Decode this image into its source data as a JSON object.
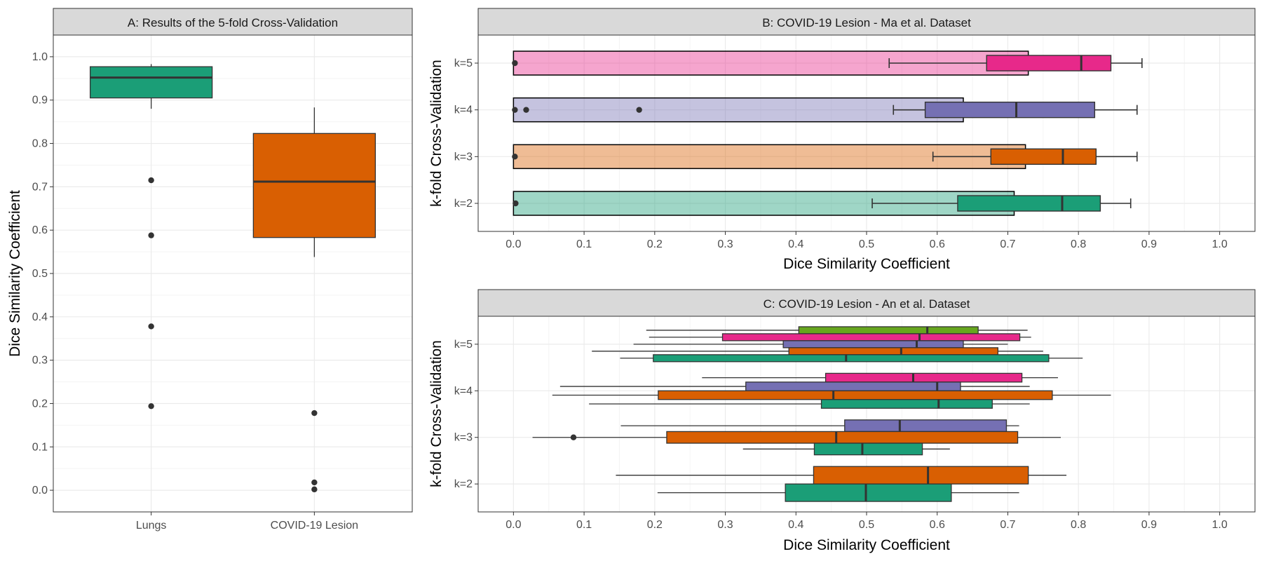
{
  "chart_data": [
    {
      "id": "A",
      "type": "boxplot",
      "title": "A: Results of the 5-fold Cross-Validation",
      "xlabel": "",
      "ylabel": "Dice Similarity Coefficient",
      "ylim": [
        -0.05,
        1.05
      ],
      "yticks": [
        0.0,
        0.1,
        0.2,
        0.3,
        0.4,
        0.5,
        0.6,
        0.7,
        0.8,
        0.9,
        1.0
      ],
      "ytick_labels": [
        "0.0",
        "0.1",
        "0.2",
        "0.3",
        "0.4",
        "0.5",
        "0.6",
        "0.7",
        "0.8",
        "0.9",
        "1.0"
      ],
      "grid": true,
      "categories": [
        "Lungs",
        "COVID-19 Lesion"
      ],
      "boxes": [
        {
          "category": "Lungs",
          "color": "#1b9e77",
          "lower_whisker": 0.88,
          "q1": 0.905,
          "median": 0.952,
          "q3": 0.977,
          "upper_whisker": 0.983,
          "outliers": [
            0.715,
            0.588,
            0.378,
            0.194
          ]
        },
        {
          "category": "COVID-19 Lesion",
          "color": "#d95f02",
          "lower_whisker": 0.538,
          "q1": 0.583,
          "median": 0.712,
          "q3": 0.823,
          "upper_whisker": 0.883,
          "outliers": [
            0.178,
            0.018,
            0.002
          ]
        }
      ]
    },
    {
      "id": "B",
      "type": "bar_with_boxplot",
      "title": "B: COVID-19 Lesion - Ma et al. Dataset",
      "xlabel": "Dice Similarity Coefficient",
      "ylabel": "k-fold Cross-Validation",
      "xlim": [
        -0.05,
        1.05
      ],
      "xticks": [
        0.0,
        0.1,
        0.2,
        0.3,
        0.4,
        0.5,
        0.6,
        0.7,
        0.8,
        0.9,
        1.0
      ],
      "xtick_labels": [
        "0.0",
        "0.1",
        "0.2",
        "0.3",
        "0.4",
        "0.5",
        "0.6",
        "0.7",
        "0.8",
        "0.9",
        "1.0"
      ],
      "grid": true,
      "categories": [
        "k=2",
        "k=3",
        "k=4",
        "k=5"
      ],
      "series": [
        {
          "category": "k=5",
          "color": "#e7298a",
          "bar_value": 0.729,
          "lower_whisker": 0.532,
          "q1": 0.67,
          "median": 0.804,
          "q3": 0.846,
          "upper_whisker": 0.89,
          "outliers": [
            0.002
          ]
        },
        {
          "category": "k=4",
          "color": "#7570b3",
          "bar_value": 0.637,
          "lower_whisker": 0.538,
          "q1": 0.583,
          "median": 0.712,
          "q3": 0.823,
          "upper_whisker": 0.883,
          "outliers": [
            0.002,
            0.018,
            0.178
          ]
        },
        {
          "category": "k=3",
          "color": "#d95f02",
          "bar_value": 0.725,
          "lower_whisker": 0.594,
          "q1": 0.676,
          "median": 0.778,
          "q3": 0.825,
          "upper_whisker": 0.883,
          "outliers": [
            0.002
          ]
        },
        {
          "category": "k=2",
          "color": "#1b9e77",
          "bar_value": 0.709,
          "lower_whisker": 0.508,
          "q1": 0.629,
          "median": 0.777,
          "q3": 0.831,
          "upper_whisker": 0.874,
          "outliers": [
            0.003
          ]
        }
      ]
    },
    {
      "id": "C",
      "type": "grouped_boxplot",
      "title": "C: COVID-19 Lesion - An et al. Dataset",
      "xlabel": "Dice Similarity Coefficient",
      "ylabel": "k-fold Cross-Validation",
      "xlim": [
        -0.05,
        1.05
      ],
      "xticks": [
        0.0,
        0.1,
        0.2,
        0.3,
        0.4,
        0.5,
        0.6,
        0.7,
        0.8,
        0.9,
        1.0
      ],
      "xtick_labels": [
        "0.0",
        "0.1",
        "0.2",
        "0.3",
        "0.4",
        "0.5",
        "0.6",
        "0.7",
        "0.8",
        "0.9",
        "1.0"
      ],
      "grid": true,
      "categories": [
        "k=2",
        "k=3",
        "k=4",
        "k=5"
      ],
      "groups": [
        {
          "category": "k=5",
          "boxes": [
            {
              "color": "#66a61e",
              "lower_whisker": 0.188,
              "q1": 0.404,
              "median": 0.586,
              "q3": 0.658,
              "upper_whisker": 0.728
            },
            {
              "color": "#e7298a",
              "lower_whisker": 0.192,
              "q1": 0.296,
              "median": 0.575,
              "q3": 0.717,
              "upper_whisker": 0.733
            },
            {
              "color": "#7570b3",
              "lower_whisker": 0.17,
              "q1": 0.382,
              "median": 0.571,
              "q3": 0.637,
              "upper_whisker": 0.7
            },
            {
              "color": "#d95f02",
              "lower_whisker": 0.111,
              "q1": 0.39,
              "median": 0.549,
              "q3": 0.686,
              "upper_whisker": 0.75
            },
            {
              "color": "#1b9e77",
              "lower_whisker": 0.151,
              "q1": 0.198,
              "median": 0.471,
              "q3": 0.758,
              "upper_whisker": 0.806
            }
          ]
        },
        {
          "category": "k=4",
          "boxes": [
            {
              "color": "#e7298a",
              "lower_whisker": 0.267,
              "q1": 0.442,
              "median": 0.566,
              "q3": 0.72,
              "upper_whisker": 0.771
            },
            {
              "color": "#7570b3",
              "lower_whisker": 0.066,
              "q1": 0.329,
              "median": 0.6,
              "q3": 0.633,
              "upper_whisker": 0.731
            },
            {
              "color": "#d95f02",
              "lower_whisker": 0.055,
              "q1": 0.205,
              "median": 0.453,
              "q3": 0.763,
              "upper_whisker": 0.846
            },
            {
              "color": "#1b9e77",
              "lower_whisker": 0.107,
              "q1": 0.436,
              "median": 0.602,
              "q3": 0.678,
              "upper_whisker": 0.731
            }
          ]
        },
        {
          "category": "k=3",
          "boxes": [
            {
              "color": "#7570b3",
              "lower_whisker": 0.152,
              "q1": 0.469,
              "median": 0.547,
              "q3": 0.698,
              "upper_whisker": 0.716
            },
            {
              "color": "#d95f02",
              "lower_whisker": 0.027,
              "q1": 0.217,
              "median": 0.457,
              "q3": 0.714,
              "upper_whisker": 0.775,
              "outliers": [
                0.085
              ]
            },
            {
              "color": "#1b9e77",
              "lower_whisker": 0.325,
              "q1": 0.426,
              "median": 0.494,
              "q3": 0.579,
              "upper_whisker": 0.618
            }
          ]
        },
        {
          "category": "k=2",
          "boxes": [
            {
              "color": "#d95f02",
              "lower_whisker": 0.145,
              "q1": 0.425,
              "median": 0.587,
              "q3": 0.729,
              "upper_whisker": 0.783
            },
            {
              "color": "#1b9e77",
              "lower_whisker": 0.204,
              "q1": 0.385,
              "median": 0.499,
              "q3": 0.62,
              "upper_whisker": 0.716
            }
          ]
        }
      ]
    }
  ]
}
